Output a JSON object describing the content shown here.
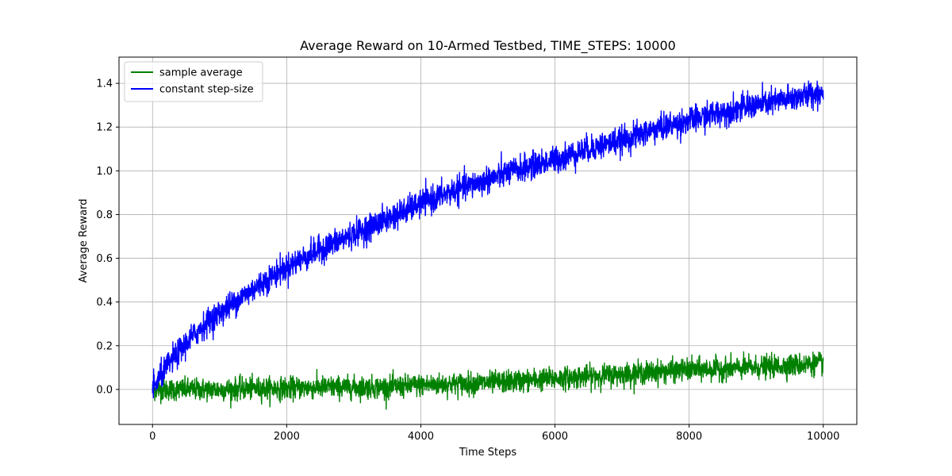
{
  "chart_data": {
    "type": "line",
    "title": "Average Reward on 10-Armed Testbed, TIME_STEPS: 10000",
    "xlabel": "Time Steps",
    "ylabel": "Average Reward",
    "xlim": [
      -500,
      10500
    ],
    "ylim": [
      -0.16,
      1.52
    ],
    "x_ticks": [
      0,
      2000,
      4000,
      6000,
      8000,
      10000
    ],
    "y_ticks": [
      0.0,
      0.2,
      0.4,
      0.6,
      0.8,
      1.0,
      1.2,
      1.4
    ],
    "x_tick_labels": [
      "0",
      "2000",
      "4000",
      "6000",
      "8000",
      "10000"
    ],
    "y_tick_labels": [
      "0.0",
      "0.2",
      "0.4",
      "0.6",
      "0.8",
      "1.0",
      "1.2",
      "1.4"
    ],
    "grid": true,
    "legend": "top-left",
    "series": [
      {
        "name": "sample average",
        "color": "#008000",
        "noise": 0.025,
        "x": [
          0,
          100,
          500,
          1000,
          1500,
          2000,
          2500,
          3000,
          3500,
          4000,
          4500,
          5000,
          5500,
          6000,
          6500,
          7000,
          7500,
          8000,
          8500,
          9000,
          9500,
          10000
        ],
        "values": [
          0.0,
          0.0,
          0.0,
          0.0,
          0.005,
          0.005,
          0.01,
          0.01,
          0.01,
          0.02,
          0.025,
          0.03,
          0.04,
          0.05,
          0.06,
          0.07,
          0.08,
          0.09,
          0.095,
          0.1,
          0.11,
          0.12
        ]
      },
      {
        "name": "constant step-size",
        "color": "#0000ff",
        "noise": 0.03,
        "x": [
          0,
          100,
          250,
          500,
          750,
          1000,
          1500,
          2000,
          2500,
          3000,
          3500,
          4000,
          4500,
          5000,
          5500,
          6000,
          6500,
          7000,
          7500,
          8000,
          8500,
          9000,
          9500,
          10000
        ],
        "values": [
          0.0,
          0.05,
          0.12,
          0.21,
          0.29,
          0.35,
          0.46,
          0.56,
          0.64,
          0.71,
          0.78,
          0.85,
          0.91,
          0.96,
          1.01,
          1.05,
          1.1,
          1.14,
          1.19,
          1.23,
          1.27,
          1.3,
          1.33,
          1.36
        ]
      }
    ]
  }
}
